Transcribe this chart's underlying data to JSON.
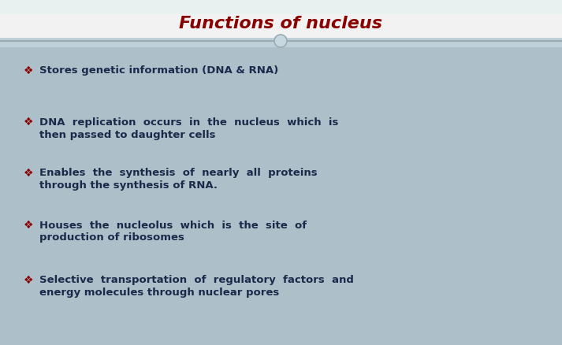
{
  "title": "Functions of nucleus",
  "title_color": "#8B0000",
  "title_fontsize": 16,
  "bullet_symbol": "❖",
  "bullet_color": "#8B0000",
  "text_color": "#1a2a4a",
  "text_fontsize": 9.5,
  "bg_top_color": "#f0f0f0",
  "content_bg_color": "#aec4cc",
  "bullet_items": [
    [
      "Stores genetic information (DNA & RNA)"
    ],
    [
      "DNA  replication  occurs  in  the  nucleus  which  is",
      "then passed to daughter cells"
    ],
    [
      "Enables  the  synthesis  of  nearly  all  proteins",
      "through the synthesis of RNA."
    ],
    [
      "Houses  the  nucleolus  which  is  the  site  of",
      "production of ribosomes"
    ],
    [
      "Selective  transportation  of  regulatory  factors  and",
      "energy molecules through nuclear pores"
    ]
  ],
  "fig_width": 7.13,
  "fig_height": 4.38,
  "dpi": 100
}
